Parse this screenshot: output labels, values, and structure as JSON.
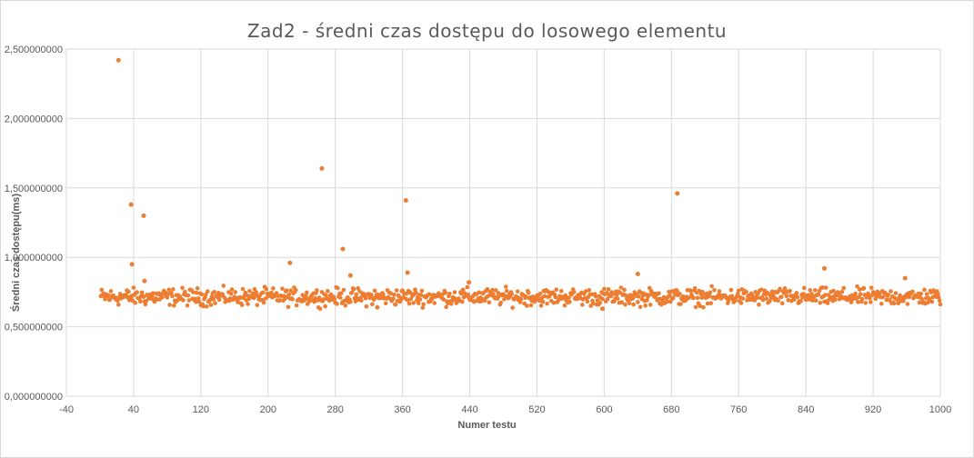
{
  "chart_data": {
    "type": "scatter",
    "title": "Zad2 - średni czas dostępu do losowego elementu",
    "xlabel": "Numer testu",
    "ylabel": "Średni czas dostępu(ms)",
    "xlim": [
      -40,
      1000
    ],
    "ylim": [
      0,
      2.5
    ],
    "x_ticks": [
      -40,
      40,
      120,
      200,
      280,
      360,
      440,
      520,
      600,
      680,
      760,
      840,
      920,
      1000
    ],
    "x_tick_labels": [
      "-40",
      "40",
      "120",
      "200",
      "280",
      "360",
      "440",
      "520",
      "600",
      "680",
      "760",
      "840",
      "920",
      "1000"
    ],
    "y_ticks": [
      0,
      0.5,
      1.0,
      1.5,
      2.0,
      2.5
    ],
    "y_tick_labels": [
      "0,000000000",
      "0,500000000",
      "1,000000000",
      "1,500000000",
      "2,000000000",
      "2,500000000"
    ],
    "grid": "vertical-and-horizontal",
    "marker_color": "#ED7D31",
    "baseline": {
      "x_range": [
        1,
        1000
      ],
      "y_mean": 0.715,
      "y_spread": 0.06
    },
    "outliers": [
      {
        "x": 22,
        "y": 2.42
      },
      {
        "x": 37,
        "y": 1.38
      },
      {
        "x": 38,
        "y": 0.95
      },
      {
        "x": 52,
        "y": 1.3
      },
      {
        "x": 53,
        "y": 0.83
      },
      {
        "x": 226,
        "y": 0.96
      },
      {
        "x": 264,
        "y": 1.64
      },
      {
        "x": 289,
        "y": 1.06
      },
      {
        "x": 298,
        "y": 0.87
      },
      {
        "x": 364,
        "y": 1.41
      },
      {
        "x": 366,
        "y": 0.89
      },
      {
        "x": 439,
        "y": 0.82
      },
      {
        "x": 640,
        "y": 0.88
      },
      {
        "x": 687,
        "y": 1.46
      },
      {
        "x": 862,
        "y": 0.92
      },
      {
        "x": 958,
        "y": 0.85
      },
      {
        "x": 598,
        "y": 0.63
      },
      {
        "x": 330,
        "y": 0.64
      }
    ]
  }
}
